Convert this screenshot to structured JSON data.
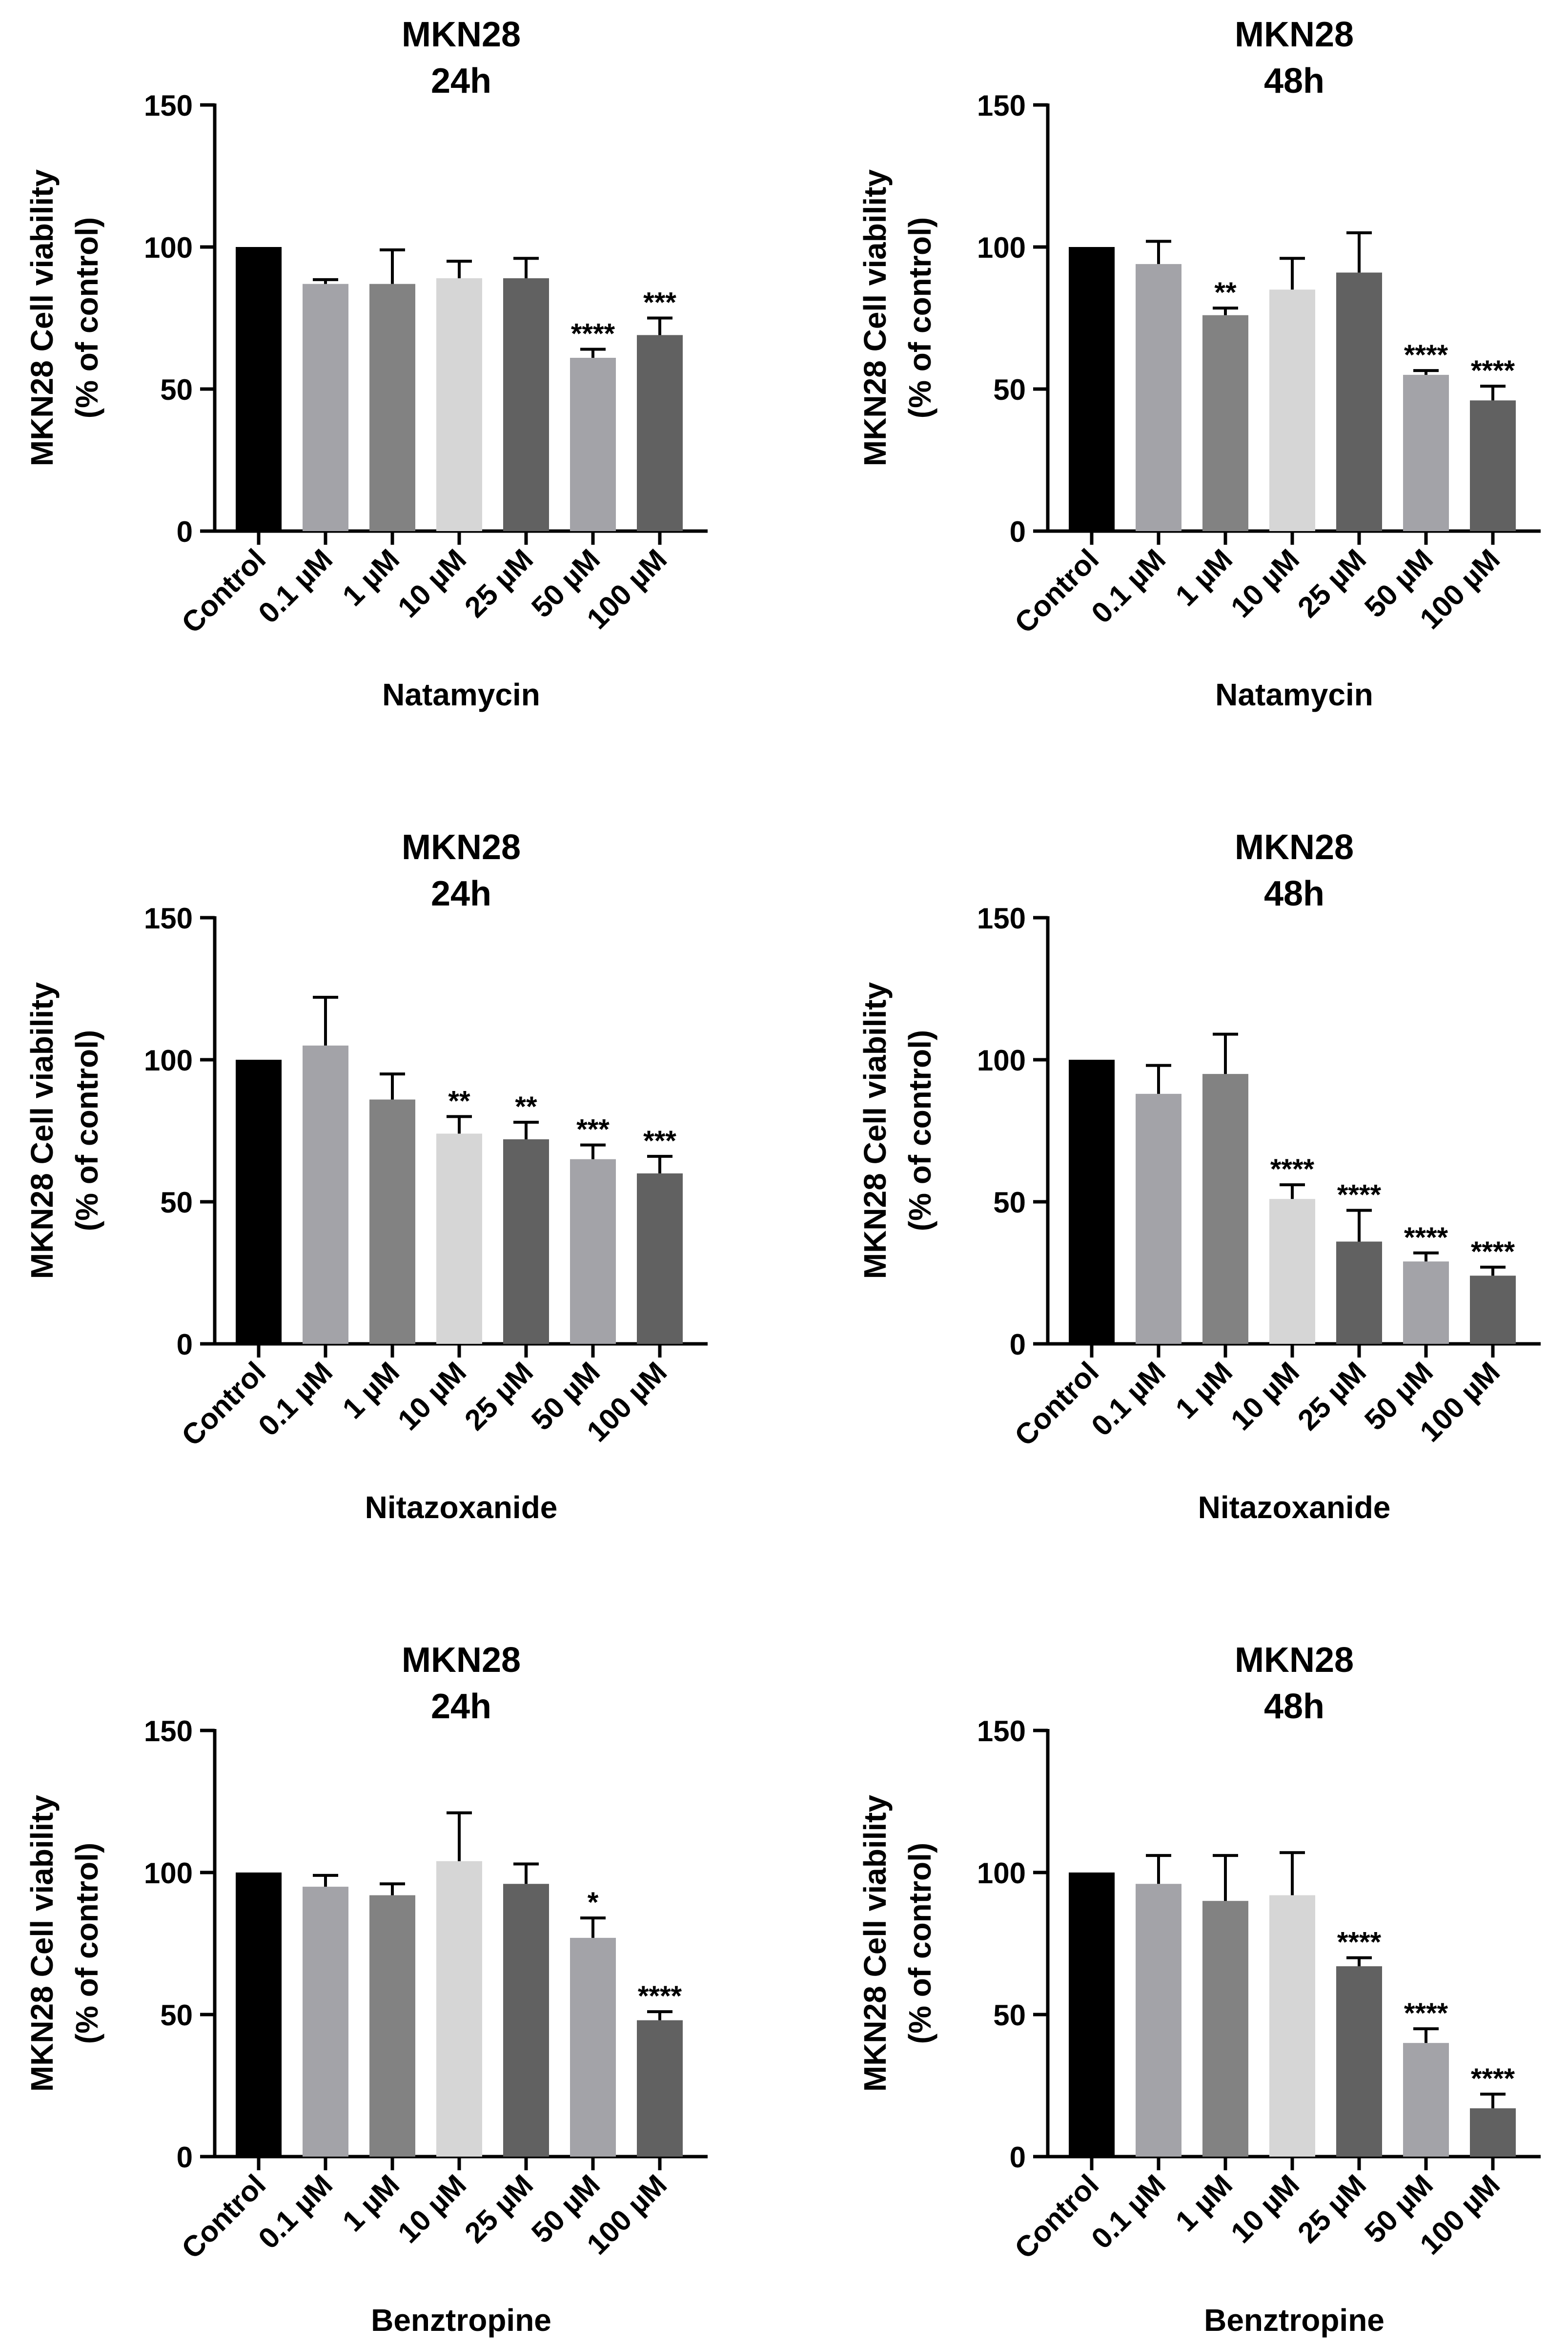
{
  "figure": {
    "colors": {
      "axis": "#000000",
      "bars": [
        "#000000",
        "#a3a3a8",
        "#828282",
        "#d6d6d6",
        "#616161",
        "#a3a3a8",
        "#616161"
      ]
    }
  },
  "chart_data": [
    {
      "type": "bar",
      "title_line1": "MKN28",
      "title_line2": "24h",
      "xlabel": "Natamycin",
      "ylabel_line1": "MKN28 Cell viability",
      "ylabel_line2": "(% of control)",
      "ylim": [
        0,
        150
      ],
      "yticks": [
        0,
        50,
        100,
        150
      ],
      "categories": [
        "Control",
        "0.1 µM",
        "1 µM",
        "10 µM",
        "25 µM",
        "50 µM",
        "100 µM"
      ],
      "values": [
        100,
        87,
        87,
        89,
        89,
        61,
        69
      ],
      "errors": [
        0,
        1.5,
        12,
        6,
        7,
        3,
        6
      ],
      "significance": [
        "",
        "",
        "",
        "",
        "",
        "****",
        "***"
      ]
    },
    {
      "type": "bar",
      "title_line1": "MKN28",
      "title_line2": "48h",
      "xlabel": "Natamycin",
      "ylabel_line1": "MKN28 Cell viability",
      "ylabel_line2": "(% of control)",
      "ylim": [
        0,
        150
      ],
      "yticks": [
        0,
        50,
        100,
        150
      ],
      "categories": [
        "Control",
        "0.1 µM",
        "1 µM",
        "10 µM",
        "25 µM",
        "50 µM",
        "100 µM"
      ],
      "values": [
        100,
        94,
        76,
        85,
        91,
        55,
        46
      ],
      "errors": [
        0,
        8,
        2.5,
        11,
        14,
        1.5,
        5
      ],
      "significance": [
        "",
        "",
        "**",
        "",
        "",
        "****",
        "****"
      ]
    },
    {
      "type": "bar",
      "title_line1": "MKN28",
      "title_line2": "24h",
      "xlabel": "Nitazoxanide",
      "ylabel_line1": "MKN28 Cell viability",
      "ylabel_line2": "(% of control)",
      "ylim": [
        0,
        150
      ],
      "yticks": [
        0,
        50,
        100,
        150
      ],
      "categories": [
        "Control",
        "0.1 µM",
        "1 µM",
        "10 µM",
        "25 µM",
        "50 µM",
        "100 µM"
      ],
      "values": [
        100,
        105,
        86,
        74,
        72,
        65,
        60
      ],
      "errors": [
        0,
        17,
        9,
        6,
        6,
        5,
        6
      ],
      "significance": [
        "",
        "",
        "",
        "**",
        "**",
        "***",
        "***"
      ]
    },
    {
      "type": "bar",
      "title_line1": "MKN28",
      "title_line2": "48h",
      "xlabel": "Nitazoxanide",
      "ylabel_line1": "MKN28 Cell viability",
      "ylabel_line2": "(% of control)",
      "ylim": [
        0,
        150
      ],
      "yticks": [
        0,
        50,
        100,
        150
      ],
      "categories": [
        "Control",
        "0.1 µM",
        "1 µM",
        "10 µM",
        "25 µM",
        "50 µM",
        "100 µM"
      ],
      "values": [
        100,
        88,
        95,
        51,
        36,
        29,
        24
      ],
      "errors": [
        0,
        10,
        14,
        5,
        11,
        3,
        3
      ],
      "significance": [
        "",
        "",
        "",
        "****",
        "****",
        "****",
        "****"
      ]
    },
    {
      "type": "bar",
      "title_line1": "MKN28",
      "title_line2": "24h",
      "xlabel": "Benztropine",
      "ylabel_line1": "MKN28 Cell viability",
      "ylabel_line2": "(% of control)",
      "ylim": [
        0,
        150
      ],
      "yticks": [
        0,
        50,
        100,
        150
      ],
      "categories": [
        "Control",
        "0.1 µM",
        "1 µM",
        "10 µM",
        "25 µM",
        "50 µM",
        "100 µM"
      ],
      "values": [
        100,
        95,
        92,
        104,
        96,
        77,
        48
      ],
      "errors": [
        0,
        4,
        4,
        17,
        7,
        7,
        3
      ],
      "significance": [
        "",
        "",
        "",
        "",
        "",
        "*",
        "****"
      ]
    },
    {
      "type": "bar",
      "title_line1": "MKN28",
      "title_line2": "48h",
      "xlabel": "Benztropine",
      "ylabel_line1": "MKN28 Cell viability",
      "ylabel_line2": "(% of control)",
      "ylim": [
        0,
        150
      ],
      "yticks": [
        0,
        50,
        100,
        150
      ],
      "categories": [
        "Control",
        "0.1 µM",
        "1 µM",
        "10 µM",
        "25 µM",
        "50 µM",
        "100 µM"
      ],
      "values": [
        100,
        96,
        90,
        92,
        67,
        40,
        17
      ],
      "errors": [
        0,
        10,
        16,
        15,
        3,
        5,
        5
      ],
      "significance": [
        "",
        "",
        "",
        "",
        "****",
        "****",
        "****"
      ]
    }
  ]
}
